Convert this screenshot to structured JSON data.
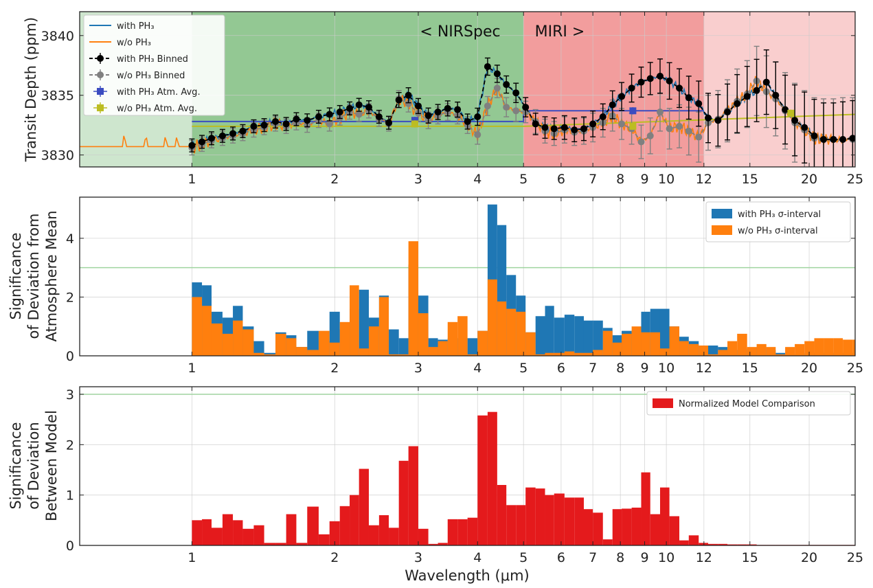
{
  "colors": {
    "with_ph3": "#1f77b4",
    "without_ph3": "#ff7f0e",
    "binned_with": "#000000",
    "binned_without": "#808080",
    "avg_with": "#3b4cc0",
    "avg_without": "#bcbd22",
    "nirspec_bg": "#3a9a3a",
    "miri_bg": "#e63c3c",
    "model_comparison": "#e41a1c",
    "threshold_line": "#9fd49f"
  },
  "chart_data": [
    {
      "type": "line",
      "xscale": "log",
      "xlim": [
        0.58,
        25
      ],
      "ylim": [
        3829,
        3842
      ],
      "ylabel": "Transit Depth (ppm)",
      "xticks": [
        "1",
        "2",
        "3",
        "4",
        "5",
        "6",
        "7",
        "8",
        "9",
        "10",
        "12",
        "15",
        "20",
        "25"
      ],
      "yticks": [
        "3830",
        "3835",
        "3840"
      ],
      "region_labels": [
        "< NIRSpec",
        "MIRI >"
      ],
      "regions": [
        {
          "x": [
            0.58,
            1.0
          ],
          "color": "light-green"
        },
        {
          "x": [
            1.0,
            5.0
          ],
          "color": "green"
        },
        {
          "x": [
            5.0,
            12.0
          ],
          "color": "red"
        },
        {
          "x": [
            12.0,
            25.0
          ],
          "color": "light-red"
        }
      ],
      "legend_position": "top-left",
      "legend": [
        {
          "label": "with PH₃",
          "style": "line",
          "color": "#1f77b4"
        },
        {
          "label": "w/o PH₃",
          "style": "line",
          "color": "#ff7f0e"
        },
        {
          "label": "with PH₃ Binned",
          "style": "dashed-marker",
          "color": "#000000"
        },
        {
          "label": "w/o PH₃ Binned",
          "style": "dashed-marker",
          "color": "#808080"
        },
        {
          "label": "with PH₃ Atm. Avg.",
          "style": "errorbar",
          "color": "#3b4cc0"
        },
        {
          "label": "w/o PH₃ Atm. Avg.",
          "style": "errorbar",
          "color": "#bcbd22"
        }
      ],
      "binned_x": [
        1.0,
        1.05,
        1.1,
        1.16,
        1.22,
        1.28,
        1.35,
        1.42,
        1.5,
        1.58,
        1.66,
        1.75,
        1.85,
        1.95,
        2.05,
        2.15,
        2.25,
        2.36,
        2.48,
        2.6,
        2.73,
        2.86,
        3.0,
        3.15,
        3.3,
        3.46,
        3.63,
        3.81,
        4.0,
        4.2,
        4.4,
        4.6,
        4.82,
        5.05,
        5.3,
        5.55,
        5.8,
        6.1,
        6.4,
        6.7,
        7.0,
        7.35,
        7.7,
        8.05,
        8.45,
        8.85,
        9.25,
        9.7,
        10.15,
        10.65,
        11.15,
        11.7,
        12.25,
        12.85,
        13.45,
        14.1,
        14.8,
        15.5,
        16.25,
        17.0,
        17.8,
        18.65,
        19.55,
        20.5,
        21.45,
        22.5,
        23.55,
        24.7
      ],
      "series": [
        {
          "name": "with PH₃ Binned",
          "values": [
            3830.8,
            3831.1,
            3831.4,
            3831.6,
            3831.8,
            3832.0,
            3832.4,
            3832.5,
            3832.8,
            3832.6,
            3833.0,
            3832.9,
            3833.2,
            3833.4,
            3833.6,
            3833.9,
            3834.2,
            3834.0,
            3833.2,
            3832.7,
            3834.6,
            3835.0,
            3834.1,
            3833.3,
            3833.6,
            3833.9,
            3833.8,
            3832.8,
            3833.2,
            3837.4,
            3836.8,
            3835.9,
            3835.2,
            3834.0,
            3832.6,
            3832.3,
            3832.2,
            3832.3,
            3832.1,
            3832.2,
            3832.6,
            3833.2,
            3834.2,
            3834.9,
            3835.6,
            3836.1,
            3836.4,
            3836.6,
            3836.2,
            3835.6,
            3834.8,
            3834.3,
            3833.1,
            3832.9,
            3833.6,
            3834.3,
            3834.9,
            3835.4,
            3836.1,
            3835.0,
            3833.8,
            3832.9,
            3832.3,
            3831.6,
            3831.3,
            3831.3,
            3831.3,
            3831.4
          ]
        },
        {
          "name": "w/o PH₃ Binned",
          "values": [
            3830.6,
            3830.9,
            3831.2,
            3831.4,
            3831.6,
            3831.8,
            3832.1,
            3832.3,
            3832.6,
            3832.4,
            3832.7,
            3832.5,
            3832.9,
            3832.6,
            3833.1,
            3833.6,
            3833.4,
            3833.7,
            3833.0,
            3832.6,
            3834.7,
            3834.3,
            3833.5,
            3832.9,
            3833.3,
            3833.6,
            3833.3,
            3832.5,
            3831.7,
            3834.1,
            3835.6,
            3834.0,
            3833.7,
            3833.6,
            3832.8,
            3832.0,
            3831.8,
            3832.1,
            3831.9,
            3832.0,
            3832.3,
            3832.7,
            3833.3,
            3832.6,
            3832.2,
            3831.1,
            3831.6,
            3833.6,
            3832.2,
            3832.4,
            3832.0,
            3831.5,
            3832.7,
            3833.0,
            3833.7,
            3834.5,
            3835.1,
            3836.2,
            3835.3,
            3834.7,
            3833.7,
            3832.7,
            3832.1,
            3831.4,
            3831.3,
            3831.3,
            3831.3,
            3831.3
          ]
        }
      ],
      "binned_errors": [
        0.6,
        0.6,
        0.6,
        0.6,
        0.6,
        0.6,
        0.6,
        0.6,
        0.6,
        0.6,
        0.6,
        0.6,
        0.6,
        0.6,
        0.6,
        0.6,
        0.6,
        0.6,
        0.6,
        0.6,
        0.7,
        0.7,
        0.7,
        0.7,
        0.7,
        0.7,
        0.7,
        0.7,
        0.8,
        0.8,
        0.8,
        0.8,
        0.9,
        0.9,
        1.0,
        1.0,
        1.0,
        1.1,
        1.1,
        1.1,
        1.2,
        1.2,
        1.3,
        1.3,
        1.3,
        1.4,
        1.5,
        1.6,
        1.7,
        1.8,
        2.0,
        2.1,
        2.3,
        2.4,
        2.6,
        2.7,
        2.8,
        2.9,
        3.0,
        3.1,
        3.2,
        3.3,
        3.3,
        3.4,
        3.4,
        3.4,
        3.5,
        3.5
      ],
      "atm_avg": [
        {
          "name": "with PH₃ Atm. Avg.",
          "x": [
            2.95,
            8.5
          ],
          "y": [
            3832.9,
            3833.7
          ],
          "yerr": 0.3
        },
        {
          "name": "w/o PH₃ Atm. Avg.",
          "x": [
            2.95,
            8.5,
            18.3
          ],
          "y": [
            3832.6,
            3832.4,
            3833.5
          ],
          "yerr": 0.3
        },
        {
          "name": "with PH₃ Atm. Avg. line",
          "x": [
            1.0,
            5.0,
            5.0,
            12.0
          ],
          "y": [
            3832.8,
            3832.8,
            3833.7,
            3833.7
          ]
        },
        {
          "name": "w/o PH₃ Atm. Avg. line",
          "x": [
            1.0,
            5.0,
            5.0,
            25.0
          ],
          "y": [
            3832.4,
            3832.4,
            3832.4,
            3833.4
          ]
        }
      ]
    },
    {
      "type": "bar",
      "xscale": "log",
      "xlim": [
        0.58,
        25
      ],
      "ylim": [
        0,
        5.4
      ],
      "ylabel_lines": [
        "Significance",
        "of Deviation from",
        "Atmosphere Mean"
      ],
      "xticks": [
        "1",
        "2",
        "3",
        "4",
        "5",
        "6",
        "7",
        "8",
        "9",
        "10",
        "12",
        "15",
        "20",
        "25"
      ],
      "yticks": [
        "0",
        "2",
        "4"
      ],
      "threshold": 3,
      "legend_position": "top-right",
      "legend": [
        {
          "label": "with PH₃ σ-interval",
          "color": "#1f77b4"
        },
        {
          "label": "w/o PH₃ σ-interval",
          "color": "#ff7f0e"
        }
      ],
      "bin_edges": [
        1.0,
        1.05,
        1.1,
        1.16,
        1.22,
        1.28,
        1.35,
        1.42,
        1.5,
        1.58,
        1.66,
        1.75,
        1.85,
        1.95,
        2.05,
        2.15,
        2.25,
        2.36,
        2.48,
        2.6,
        2.73,
        2.86,
        3.0,
        3.15,
        3.3,
        3.46,
        3.63,
        3.81,
        4.0,
        4.2,
        4.4,
        4.6,
        4.82,
        5.05,
        5.3,
        5.55,
        5.8,
        6.1,
        6.4,
        6.7,
        7.0,
        7.35,
        7.7,
        8.05,
        8.45,
        8.85,
        9.25,
        9.7,
        10.15,
        10.65,
        11.15,
        11.7,
        12.25,
        12.85,
        13.45,
        14.1,
        14.8,
        15.5,
        16.25,
        17.0,
        17.8,
        18.65,
        19.55,
        20.5,
        21.45,
        22.5,
        23.55,
        24.7,
        25.0
      ],
      "series": [
        {
          "name": "with PH₃ σ-interval",
          "values": [
            2.5,
            2.4,
            1.5,
            1.3,
            1.7,
            1.0,
            0.5,
            0.1,
            0.8,
            0.7,
            0.3,
            0.85,
            0.5,
            1.5,
            0.9,
            1.6,
            2.25,
            1.3,
            2.05,
            0.9,
            0.6,
            3.1,
            2.05,
            0.6,
            0.55,
            0.6,
            0.6,
            0.6,
            0.85,
            5.15,
            4.45,
            2.75,
            2.05,
            0.8,
            1.35,
            1.7,
            1.3,
            1.4,
            1.35,
            1.2,
            1.2,
            0.95,
            0.7,
            0.85,
            0.8,
            1.5,
            1.6,
            1.6,
            1.0,
            0.65,
            0.5,
            0.35,
            0.35,
            0.3,
            0.2,
            0.2,
            0.25,
            0.3,
            0.2,
            0.1,
            0.05,
            0.05,
            0.1,
            0.1,
            0.1,
            0.1,
            0.1,
            0.1
          ]
        },
        {
          "name": "w/o PH₃ σ-interval",
          "values": [
            2.0,
            1.7,
            1.1,
            0.75,
            1.2,
            0.9,
            0.1,
            0.05,
            0.75,
            0.6,
            0.3,
            0.2,
            0.85,
            0.45,
            1.15,
            2.4,
            0.25,
            1.0,
            2.0,
            0.05,
            0.05,
            3.9,
            1.45,
            0.3,
            0.5,
            1.15,
            1.35,
            0.05,
            0.85,
            2.6,
            1.85,
            1.6,
            1.5,
            0.8,
            0.05,
            0.1,
            0.1,
            0.15,
            0.1,
            0.1,
            0.2,
            0.85,
            0.45,
            0.75,
            1.0,
            0.8,
            0.8,
            0.25,
            1.0,
            0.5,
            0.4,
            0.35,
            0.05,
            0.2,
            0.5,
            0.75,
            0.3,
            0.4,
            0.3,
            0.05,
            0.3,
            0.4,
            0.5,
            0.6,
            0.6,
            0.6,
            0.55,
            0.55
          ]
        }
      ]
    },
    {
      "type": "bar",
      "xscale": "log",
      "xlim": [
        0.58,
        25
      ],
      "ylim": [
        0,
        3.15
      ],
      "ylabel_lines": [
        "Significance",
        "of Deviation",
        "Between Model"
      ],
      "xlabel": "Wavelength (μm)",
      "xticks": [
        "1",
        "2",
        "3",
        "4",
        "5",
        "6",
        "7",
        "8",
        "9",
        "10",
        "12",
        "15",
        "20",
        "25"
      ],
      "yticks": [
        "0",
        "1",
        "2",
        "3"
      ],
      "threshold": 3,
      "legend_position": "top-right",
      "legend": [
        {
          "label": "Normalized Model Comparison",
          "color": "#e41a1c"
        }
      ],
      "bin_edges": [
        1.0,
        1.05,
        1.1,
        1.16,
        1.22,
        1.28,
        1.35,
        1.42,
        1.5,
        1.58,
        1.66,
        1.75,
        1.85,
        1.95,
        2.05,
        2.15,
        2.25,
        2.36,
        2.48,
        2.6,
        2.73,
        2.86,
        3.0,
        3.15,
        3.3,
        3.46,
        3.63,
        3.81,
        4.0,
        4.2,
        4.4,
        4.6,
        4.82,
        5.05,
        5.3,
        5.55,
        5.8,
        6.1,
        6.4,
        6.7,
        7.0,
        7.35,
        7.7,
        8.05,
        8.45,
        8.85,
        9.25,
        9.7,
        10.15,
        10.65,
        11.15,
        11.7,
        12.25,
        12.85,
        13.45,
        14.1,
        14.8,
        15.5,
        16.25,
        17.0,
        17.8,
        18.65,
        19.55,
        20.5,
        21.45,
        22.5,
        23.55,
        24.7,
        25.0
      ],
      "series": [
        {
          "name": "Normalized Model Comparison",
          "values": [
            0.5,
            0.52,
            0.35,
            0.62,
            0.5,
            0.33,
            0.4,
            0.05,
            0.05,
            0.62,
            0.05,
            0.77,
            0.22,
            0.48,
            0.78,
            1.0,
            1.52,
            0.4,
            0.6,
            0.35,
            1.68,
            1.97,
            0.33,
            0.03,
            0.05,
            0.52,
            0.52,
            0.55,
            2.58,
            2.65,
            1.2,
            0.8,
            0.8,
            1.15,
            1.13,
            1.0,
            1.03,
            0.95,
            0.95,
            0.72,
            0.65,
            0.12,
            0.72,
            0.73,
            0.75,
            1.45,
            0.62,
            1.15,
            0.58,
            0.1,
            0.2,
            0.05,
            0.03,
            0.03,
            0.02,
            0.02,
            0.02,
            0.01,
            0.01,
            0.01,
            0.01,
            0.01,
            0.01,
            0.01,
            0.01,
            0.01,
            0.01,
            0.01
          ]
        }
      ]
    }
  ]
}
